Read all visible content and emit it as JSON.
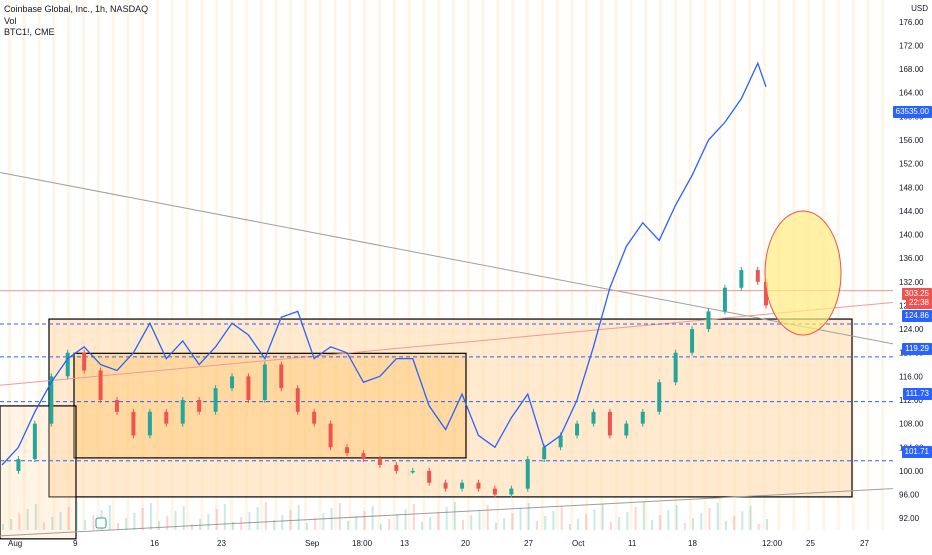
{
  "legend": {
    "symbol": "Coinbase Global, Inc., 1h, NASDAQ",
    "volume": "Vol",
    "compare": "BTC1!, CME"
  },
  "currency": "USD",
  "price_tags": {
    "btc": "63535.00",
    "last_price": "303.25",
    "countdown": "22:38",
    "level_1": "124.86",
    "level_2": "119.29",
    "level_3": "111.73",
    "level_4": "101.71"
  },
  "colors": {
    "compare_line": "#2962ff",
    "up": "#26a69a",
    "down": "#ef5350",
    "zone_fill": "#ffd9a8",
    "level_line": "#2962ff",
    "circle_fill": "#ffeb80",
    "circle_stroke": "#ef5350"
  },
  "chart_data": {
    "type": "line",
    "title": "",
    "y_axis_ticks": [
      "176.00",
      "172.00",
      "168.00",
      "164.00",
      "160.00",
      "156.00",
      "152.00",
      "148.00",
      "144.00",
      "140.00",
      "136.00",
      "132.00",
      "128.00",
      "124.00",
      "120.00",
      "116.00",
      "112.00",
      "108.00",
      "104.00",
      "100.00",
      "96.00",
      "92.00"
    ],
    "x_axis_ticks": [
      "Aug",
      "9",
      "16",
      "23",
      "Sep",
      "18:00",
      "13",
      "20",
      "27",
      "Oct",
      "11",
      "18",
      "12:00",
      "25",
      "27"
    ],
    "ylim": [
      90,
      178
    ],
    "horizontal_levels": [
      124.86,
      119.29,
      111.73,
      101.71
    ],
    "series": [
      {
        "name": "BTC1!, CME",
        "x_index": [
          0,
          4,
          8,
          12,
          16,
          20,
          24,
          28,
          32,
          36,
          40,
          44,
          48,
          52,
          56,
          60,
          64,
          68,
          72,
          76,
          80,
          84,
          88,
          92,
          96,
          100,
          104,
          108,
          112,
          116,
          120,
          124,
          128,
          132,
          136,
          140,
          144,
          148,
          152,
          156,
          160,
          164,
          168,
          172,
          176,
          180,
          184,
          186
        ],
        "values": [
          101,
          104,
          110,
          115,
          119,
          121,
          118,
          117,
          120,
          125,
          119,
          122,
          118,
          121,
          125,
          123,
          119,
          126,
          127,
          119,
          121,
          120,
          115,
          116,
          119,
          119,
          111,
          107,
          113,
          106,
          104,
          109,
          113,
          104,
          106,
          112,
          121,
          131,
          138,
          142,
          139,
          145,
          150,
          156,
          159,
          163,
          169,
          165
        ]
      }
    ],
    "candles": {
      "x_index": [
        0,
        4,
        8,
        12,
        16,
        20,
        24,
        28,
        32,
        36,
        40,
        44,
        48,
        52,
        56,
        60,
        64,
        68,
        72,
        76,
        80,
        84,
        88,
        92,
        96,
        100,
        104,
        108,
        112,
        116,
        120,
        124,
        128,
        132,
        136,
        140,
        144,
        148,
        152,
        156,
        160,
        164,
        168,
        172,
        176,
        180,
        184,
        186
      ],
      "close": [
        100,
        102,
        108,
        116,
        120,
        117,
        112,
        110,
        106,
        110,
        108,
        112,
        110,
        114,
        116,
        112,
        118,
        114,
        110,
        108,
        104,
        103,
        102,
        101,
        100,
        100,
        98,
        97,
        98,
        97,
        96,
        97,
        102,
        104,
        106,
        108,
        110,
        106,
        108,
        110,
        115,
        120,
        124,
        127,
        131,
        134,
        132,
        128
      ]
    }
  }
}
